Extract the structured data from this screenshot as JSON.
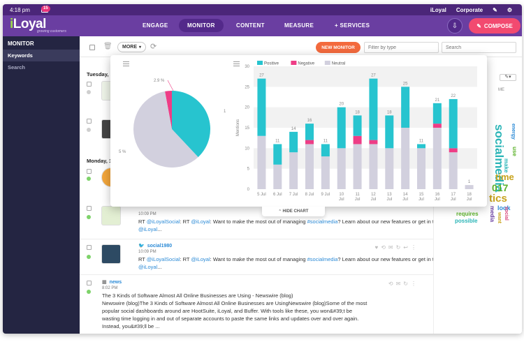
{
  "status_bar": {
    "time": "4:18 pm",
    "mail_count": "15",
    "brand": "iLoyal",
    "account": "Corporate"
  },
  "nav": {
    "logo": "iLoyal",
    "tagline": "growing customers",
    "items": [
      "ENGAGE",
      "MONITOR",
      "CONTENT",
      "MEASURE",
      "+ SERVICES"
    ],
    "active": "MONITOR",
    "compose": "COMPOSE"
  },
  "sidebar": {
    "title": "MONITOR",
    "items": [
      "Keywords",
      "Search"
    ],
    "active": "Keywords"
  },
  "toolbar": {
    "more": "MORE",
    "new_monitor": "NEW MONITOR",
    "filter_placeholder": "Filter by type",
    "search_placeholder": "Search"
  },
  "feed": {
    "day1": "Tuesday, 1",
    "day2": "Monday, 1",
    "posts": [
      {
        "account": "",
        "time": "10:09 PM",
        "text_pre": "RT ",
        "mention1": "@iLoyalSocial",
        "mid": ": RT ",
        "mention2": "@iLoyal",
        "text": ":   Want to make the most out of managing ",
        "hashtag": "#socialmedia",
        "text_post": "? Learn about our new features or get in touch ",
        "mention3": "@iLoyal",
        "ellipsis": "..."
      },
      {
        "account": "social1980",
        "time": "10:09 PM",
        "text_pre": "RT ",
        "mention1": "@iLoyalSocial",
        "mid": ": RT ",
        "mention2": "@iLoyal",
        "text": ":   Want to make the most out of managing ",
        "hashtag": "#socialmedia",
        "text_post": "? Learn about our new features or get in touch ",
        "mention3": "@iLoyal",
        "ellipsis": "..."
      },
      {
        "account": "news",
        "time": "8:02 PM",
        "line1": "The 3 Kinds of Software Almost All Online Businesses are Using - Newswire (blog)",
        "line2": "Newswire (blog)The 3 Kinds of Software Almost All Online Businesses are UsingNewswire (blog)Some of the most",
        "line3": "popular social dashboards around are HootSuite, iLoyal, and Buffer. With tools like these, you won&#39;t be",
        "line4": "wasting time logging in and out of separate accounts to paste the same links and updates over and over again.",
        "line5": "Instead, you&#39;ll be ..."
      }
    ]
  },
  "right_panel": {
    "partial_text": "ME",
    "words": [
      {
        "text": "socialmedia",
        "color": "#2bb5b7"
      },
      {
        "text": "time",
        "color": "#c8a31d"
      },
      {
        "text": "017",
        "color": "#5db32b"
      },
      {
        "text": "make",
        "color": "#2bb5b7"
      },
      {
        "text": "tics",
        "color": "#c8a31d"
      },
      {
        "text": "look",
        "color": "#2b8ad6"
      },
      {
        "text": "requires",
        "color": "#5db32b"
      },
      {
        "text": "possible",
        "color": "#2bb5b7"
      },
      {
        "text": "want",
        "color": "#c8a31d"
      },
      {
        "text": "use",
        "color": "#5db32b"
      },
      {
        "text": "energy",
        "color": "#2b8ad6"
      },
      {
        "text": "media",
        "color": "#6a3ea1"
      },
      {
        "text": "social",
        "color": "#d9447a"
      }
    ]
  },
  "popup": {
    "hide_label": "HIDE CHART"
  },
  "colors": {
    "positive": "#27c4cf",
    "negative": "#ee3d86",
    "neutral": "#d2d0de"
  },
  "chart_data": [
    {
      "type": "pie",
      "slices": [
        {
          "name": "Positive",
          "value": 38,
          "color": "#27c4cf"
        },
        {
          "name": "Negative",
          "value": 2.9,
          "color": "#ee3d86"
        },
        {
          "name": "Neutral",
          "value": 59.1,
          "color": "#d2d0de"
        }
      ],
      "labels": [
        "2.9 %",
        "5 %",
        "1"
      ]
    },
    {
      "type": "bar",
      "stacked": true,
      "ylabel": "Mentions",
      "ylim": [
        0,
        30
      ],
      "yticks": [
        0,
        5,
        10,
        15,
        20,
        25,
        30
      ],
      "legend": [
        "Positive",
        "Negative",
        "Neutral"
      ],
      "legend_position": "top",
      "categories": [
        "5 Jul",
        "6 Jul",
        "7 Jul",
        "8 Jul",
        "9 Jul",
        "10 Jul",
        "11 Jul",
        "12 Jul",
        "13 Jul",
        "14 Jul",
        "15 Jul",
        "16 Jul",
        "17 Jul",
        "18 Jul"
      ],
      "totals": [
        27,
        11,
        14,
        16,
        11,
        20,
        18,
        27,
        18,
        25,
        11,
        21,
        22,
        1
      ],
      "series": [
        {
          "name": "Neutral",
          "values": [
            13,
            6,
            9,
            11,
            8,
            10,
            11,
            11,
            10,
            15,
            10,
            15,
            9,
            1
          ],
          "color": "#d2d0de"
        },
        {
          "name": "Negative",
          "values": [
            0,
            0,
            0,
            1,
            0,
            0,
            2,
            1,
            0,
            0,
            0,
            1,
            1,
            0
          ],
          "color": "#ee3d86"
        },
        {
          "name": "Positive",
          "values": [
            14,
            5,
            5,
            4,
            3,
            10,
            5,
            15,
            8,
            10,
            1,
            5,
            12,
            0
          ],
          "color": "#27c4cf"
        }
      ]
    }
  ]
}
